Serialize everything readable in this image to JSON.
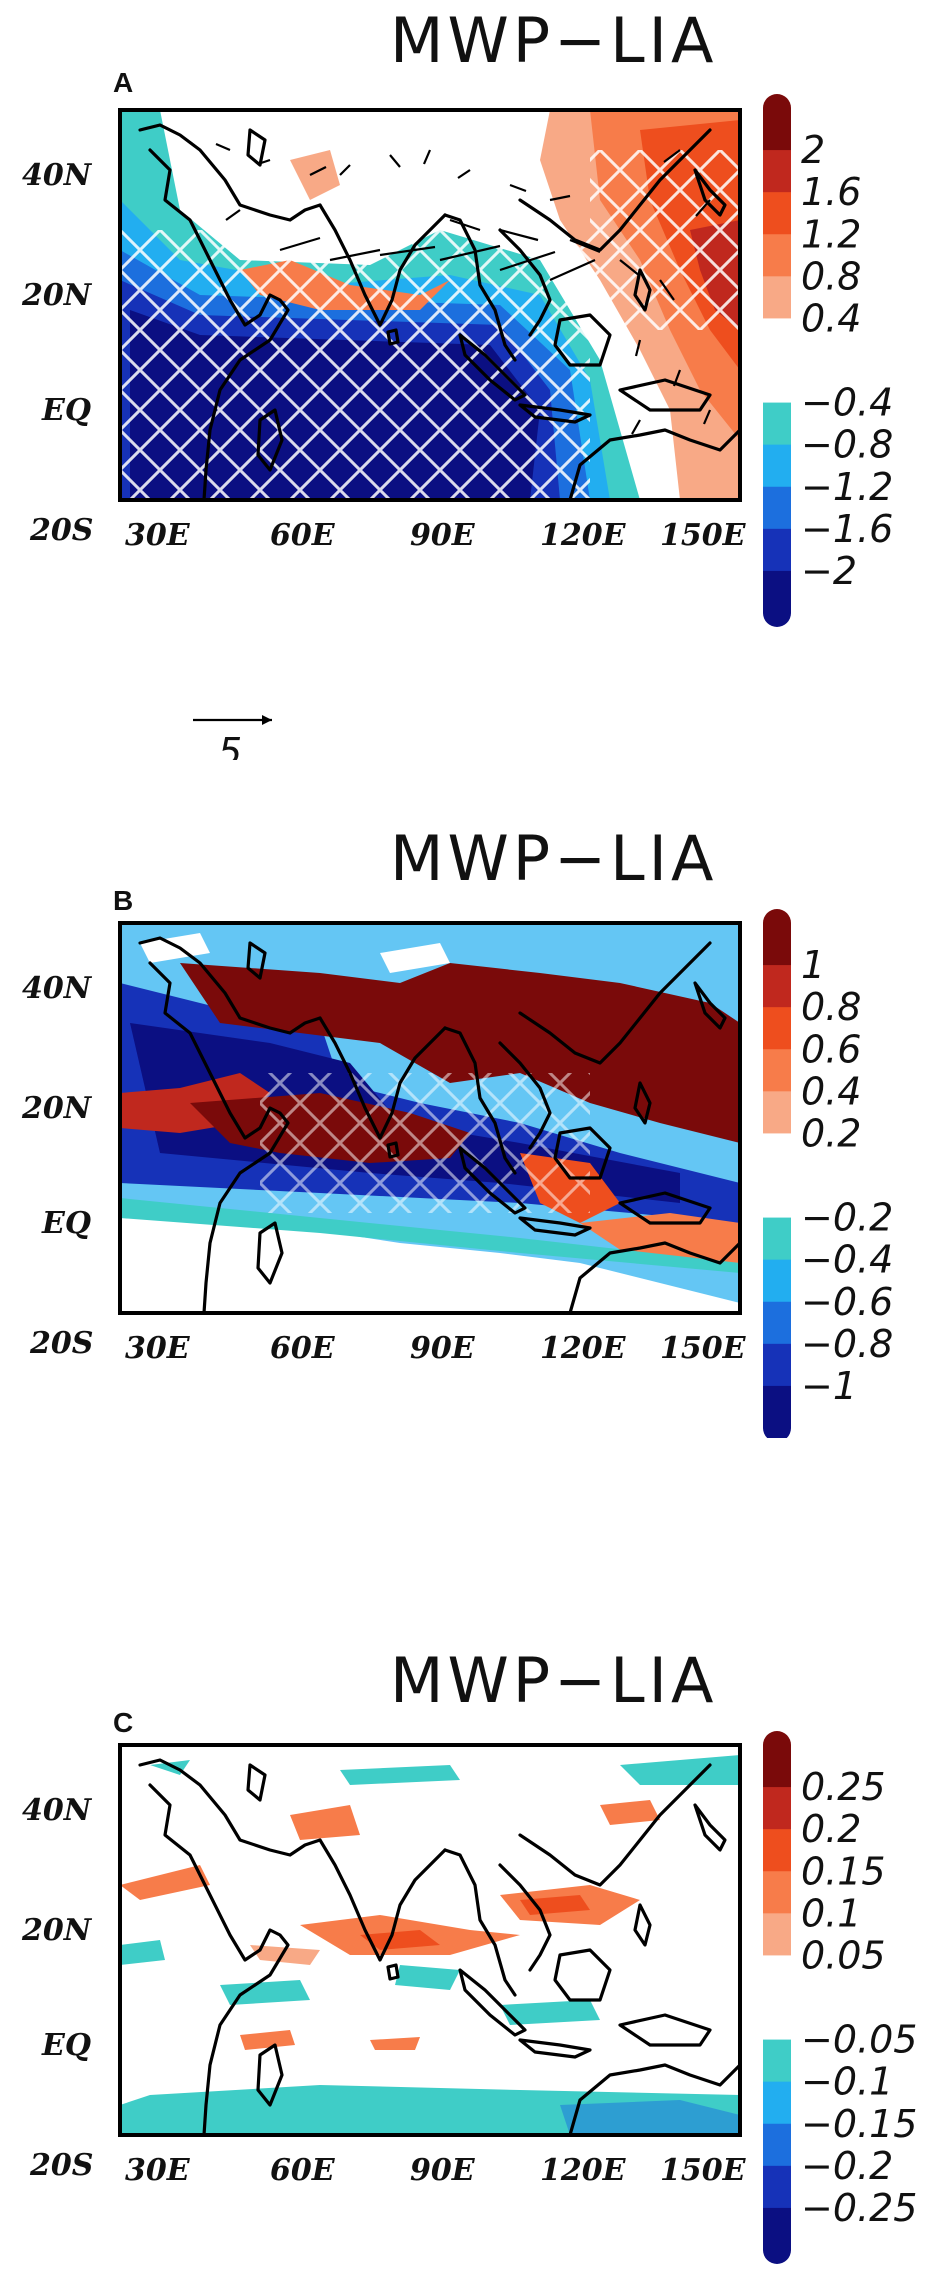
{
  "panels": [
    {
      "id": "A",
      "label": "A",
      "title": "MWP−LIA",
      "lon_ticks": [
        "30E",
        "60E",
        "90E",
        "120E",
        "150E"
      ],
      "lat_ticks": [
        "40N",
        "20N",
        "EQ",
        "20S"
      ],
      "colorbar": {
        "labels": [
          "2",
          "1.6",
          "1.2",
          "0.8",
          "0.4",
          "−0.4",
          "−0.8",
          "−1.2",
          "−1.6",
          "−2"
        ],
        "warm_colors": [
          "#7a0a0a",
          "#c0281e",
          "#ee4e1e",
          "#f77c4a",
          "#f8a986"
        ],
        "cool_colors": [
          "#3fcdc7",
          "#22aef0",
          "#1c6fde",
          "#1632b8",
          "#0b0f82"
        ]
      },
      "vector_ref": {
        "label": "5"
      }
    },
    {
      "id": "B",
      "label": "B",
      "title": "MWP−LIA",
      "lon_ticks": [
        "30E",
        "60E",
        "90E",
        "120E",
        "150E"
      ],
      "lat_ticks": [
        "40N",
        "20N",
        "EQ",
        "20S"
      ],
      "colorbar": {
        "labels": [
          "1",
          "0.8",
          "0.6",
          "0.4",
          "0.2",
          "−0.2",
          "−0.4",
          "−0.6",
          "−0.8",
          "−1"
        ],
        "warm_colors": [
          "#7a0a0a",
          "#c0281e",
          "#ee4e1e",
          "#f77c4a",
          "#f8a986"
        ],
        "cool_colors": [
          "#3fcdc7",
          "#22aef0",
          "#1c6fde",
          "#1632b8",
          "#0b0f82"
        ]
      }
    },
    {
      "id": "C",
      "label": "C",
      "title": "MWP−LIA",
      "lon_ticks": [
        "30E",
        "60E",
        "90E",
        "120E",
        "150E"
      ],
      "lat_ticks": [
        "40N",
        "20N",
        "EQ",
        "20S"
      ],
      "colorbar": {
        "labels": [
          "0.25",
          "0.2",
          "0.15",
          "0.1",
          "0.05",
          "−0.05",
          "−0.1",
          "−0.15",
          "−0.2",
          "−0.25"
        ],
        "warm_colors": [
          "#7a0a0a",
          "#c0281e",
          "#ee4e1e",
          "#f77c4a",
          "#f8a986"
        ],
        "cool_colors": [
          "#3fcdc7",
          "#22aef0",
          "#1c6fde",
          "#1632b8",
          "#0b0f82"
        ]
      }
    }
  ]
}
